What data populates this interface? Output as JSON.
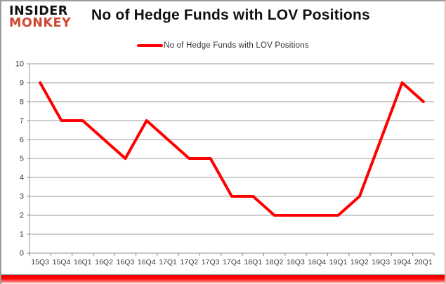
{
  "logo": {
    "line1": "INSIDER",
    "line2": "MONKEY",
    "accent_color": "#ce4733"
  },
  "header": {
    "title": "No of Hedge Funds with LOV Positions"
  },
  "legend": {
    "label": "No of Hedge Funds with LOV Positions",
    "color": "#ff0000"
  },
  "chart_data": {
    "type": "line",
    "title": "No of Hedge Funds with LOV Positions",
    "categories": [
      "15Q3",
      "15Q4",
      "16Q1",
      "16Q2",
      "16Q3",
      "16Q4",
      "17Q1",
      "17Q2",
      "17Q3",
      "17Q4",
      "18Q1",
      "18Q2",
      "18Q3",
      "18Q4",
      "19Q1",
      "19Q2",
      "19Q3",
      "19Q4",
      "20Q1"
    ],
    "series": [
      {
        "name": "No of Hedge Funds with LOV Positions",
        "color": "#ff0000",
        "values": [
          9,
          7,
          7,
          6,
          5,
          7,
          6,
          5,
          5,
          3,
          3,
          2,
          2,
          2,
          2,
          3,
          6,
          9,
          8
        ]
      }
    ],
    "xlabel": "",
    "ylabel": "",
    "ylim": [
      0,
      10
    ],
    "ytick_step": 1,
    "grid": true,
    "grid_color": "#9c9c9c",
    "axis_color": "#8f8f8f",
    "tick_label_color": "#3a3a3a",
    "legend_position": "top-center"
  }
}
